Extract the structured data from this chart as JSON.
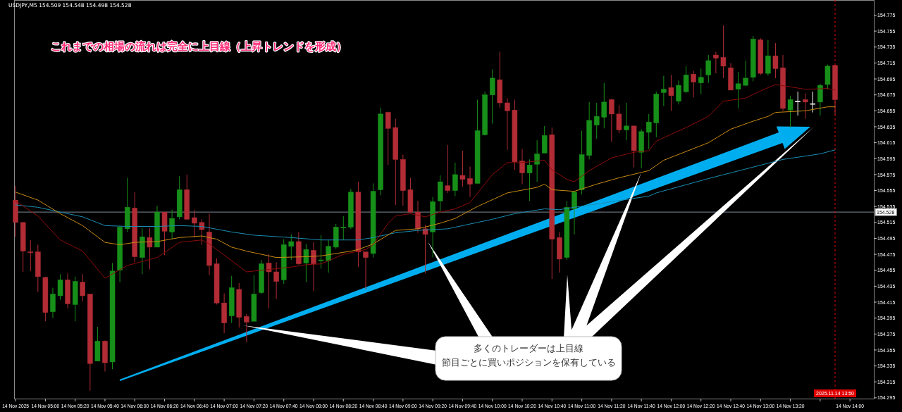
{
  "chart_data": {
    "type": "candlestick",
    "title": "USDJPY,M5  154.509 154.548 154.498 154.528",
    "annotations": [
      "これまでの相場の流れは完全に上目線（上昇トレンドを形成）",
      "多くのトレーダーは上目線",
      "節目ごとに買いポジションを保有している"
    ],
    "x": [
      "2025-11-14T04:40",
      "2025-11-14T04:45",
      "2025-11-14T04:50",
      "2025-11-14T04:55",
      "2025-11-14T05:00",
      "2025-11-14T05:05",
      "2025-11-14T05:10",
      "2025-11-14T05:15",
      "2025-11-14T05:20",
      "2025-11-14T05:25",
      "2025-11-14T05:30",
      "2025-11-14T05:35",
      "2025-11-14T05:40",
      "2025-11-14T05:45",
      "2025-11-14T05:50",
      "2025-11-14T05:55",
      "2025-11-14T06:00",
      "2025-11-14T06:05",
      "2025-11-14T06:10",
      "2025-11-14T06:15",
      "2025-11-14T06:20",
      "2025-11-14T06:25",
      "2025-11-14T06:30",
      "2025-11-14T06:35",
      "2025-11-14T06:40",
      "2025-11-14T06:45",
      "2025-11-14T06:50",
      "2025-11-14T06:55",
      "2025-11-14T07:00",
      "2025-11-14T07:05",
      "2025-11-14T07:10",
      "2025-11-14T07:15",
      "2025-11-14T07:20",
      "2025-11-14T07:25",
      "2025-11-14T07:30",
      "2025-11-14T07:35",
      "2025-11-14T07:40",
      "2025-11-14T07:45",
      "2025-11-14T07:50",
      "2025-11-14T07:55",
      "2025-11-14T08:00",
      "2025-11-14T08:05",
      "2025-11-14T08:10",
      "2025-11-14T08:15",
      "2025-11-14T08:20",
      "2025-11-14T08:25",
      "2025-11-14T08:30",
      "2025-11-14T08:35",
      "2025-11-14T08:40",
      "2025-11-14T08:45",
      "2025-11-14T08:50",
      "2025-11-14T08:55",
      "2025-11-14T09:00",
      "2025-11-14T09:05",
      "2025-11-14T09:10",
      "2025-11-14T09:15",
      "2025-11-14T09:20",
      "2025-11-14T09:25",
      "2025-11-14T09:30",
      "2025-11-14T09:35",
      "2025-11-14T09:40",
      "2025-11-14T09:45",
      "2025-11-14T09:50",
      "2025-11-14T09:55",
      "2025-11-14T10:00",
      "2025-11-14T10:05",
      "2025-11-14T10:10",
      "2025-11-14T10:15",
      "2025-11-14T10:20",
      "2025-11-14T10:25",
      "2025-11-14T10:30",
      "2025-11-14T10:35",
      "2025-11-14T10:40",
      "2025-11-14T10:45",
      "2025-11-14T10:50",
      "2025-11-14T10:55",
      "2025-11-14T11:00",
      "2025-11-14T11:05",
      "2025-11-14T11:10",
      "2025-11-14T11:15",
      "2025-11-14T11:20",
      "2025-11-14T11:25",
      "2025-11-14T11:30",
      "2025-11-14T11:35",
      "2025-11-14T11:40",
      "2025-11-14T11:45",
      "2025-11-14T11:50",
      "2025-11-14T11:55",
      "2025-11-14T12:00",
      "2025-11-14T12:05",
      "2025-11-14T12:10",
      "2025-11-14T12:15",
      "2025-11-14T12:20",
      "2025-11-14T12:25",
      "2025-11-14T12:30",
      "2025-11-14T12:35",
      "2025-11-14T12:40",
      "2025-11-14T12:45",
      "2025-11-14T12:50",
      "2025-11-14T12:55",
      "2025-11-14T13:00",
      "2025-11-14T13:05",
      "2025-11-14T13:10",
      "2025-11-14T13:15",
      "2025-11-14T13:20",
      "2025-11-14T13:25",
      "2025-11-14T13:30",
      "2025-11-14T13:35",
      "2025-11-14T13:40",
      "2025-11-14T13:45",
      "2025-11-14T13:50"
    ],
    "ohlc": [
      [
        154.543,
        154.561,
        154.497,
        154.515
      ],
      [
        154.515,
        154.515,
        154.453,
        154.479
      ],
      [
        154.478,
        154.493,
        154.454,
        154.477
      ],
      [
        154.478,
        154.487,
        154.428,
        154.447
      ],
      [
        154.446,
        154.447,
        154.391,
        154.402
      ],
      [
        154.403,
        154.433,
        154.395,
        154.425
      ],
      [
        154.423,
        154.45,
        154.418,
        154.443
      ],
      [
        154.443,
        154.451,
        154.407,
        154.413
      ],
      [
        154.412,
        154.447,
        154.391,
        154.441
      ],
      [
        154.44,
        154.45,
        154.416,
        154.423
      ],
      [
        154.425,
        154.425,
        154.304,
        154.338
      ],
      [
        154.341,
        154.384,
        154.341,
        154.366
      ],
      [
        154.366,
        154.367,
        154.328,
        154.339
      ],
      [
        154.34,
        154.464,
        154.331,
        154.454
      ],
      [
        154.455,
        154.511,
        154.44,
        154.509
      ],
      [
        154.507,
        154.571,
        154.503,
        154.534
      ],
      [
        154.533,
        154.553,
        154.465,
        154.472
      ],
      [
        154.471,
        154.508,
        154.45,
        154.497
      ],
      [
        154.496,
        154.508,
        154.456,
        154.484
      ],
      [
        154.484,
        154.536,
        154.484,
        154.528
      ],
      [
        154.528,
        154.528,
        154.474,
        154.504
      ],
      [
        154.503,
        154.531,
        154.494,
        154.52
      ],
      [
        154.522,
        154.573,
        154.519,
        154.556
      ],
      [
        154.556,
        154.575,
        154.519,
        154.519
      ],
      [
        154.521,
        154.531,
        154.496,
        154.514
      ],
      [
        154.515,
        154.519,
        154.487,
        154.506
      ],
      [
        154.503,
        154.526,
        154.449,
        154.461
      ],
      [
        154.463,
        154.47,
        154.412,
        154.414
      ],
      [
        154.414,
        154.426,
        154.376,
        154.389
      ],
      [
        154.398,
        154.448,
        154.389,
        154.433
      ],
      [
        154.431,
        154.439,
        154.383,
        154.396
      ],
      [
        154.397,
        154.4,
        154.365,
        154.39
      ],
      [
        154.391,
        154.449,
        154.391,
        154.425
      ],
      [
        154.427,
        154.468,
        154.425,
        154.463
      ],
      [
        154.464,
        154.475,
        154.407,
        154.453
      ],
      [
        154.453,
        154.465,
        154.419,
        154.441
      ],
      [
        154.443,
        154.494,
        154.438,
        154.487
      ],
      [
        154.485,
        154.5,
        154.468,
        154.491
      ],
      [
        154.491,
        154.503,
        154.462,
        154.463
      ],
      [
        154.464,
        154.488,
        154.44,
        154.481
      ],
      [
        154.48,
        154.49,
        154.429,
        154.463
      ],
      [
        154.467,
        154.499,
        154.457,
        154.468
      ],
      [
        154.467,
        154.493,
        154.452,
        154.485
      ],
      [
        154.484,
        154.513,
        154.482,
        154.509
      ],
      [
        154.508,
        154.523,
        154.493,
        154.509
      ],
      [
        154.509,
        154.557,
        154.507,
        154.553
      ],
      [
        154.553,
        154.566,
        154.459,
        154.478
      ],
      [
        154.478,
        154.478,
        154.431,
        154.471
      ],
      [
        154.476,
        154.564,
        154.471,
        154.554
      ],
      [
        154.556,
        154.659,
        154.549,
        154.651
      ],
      [
        154.653,
        154.654,
        154.587,
        154.633
      ],
      [
        154.634,
        154.645,
        154.537,
        154.594
      ],
      [
        154.594,
        154.6,
        154.536,
        154.555
      ],
      [
        154.556,
        154.571,
        154.527,
        154.528
      ],
      [
        154.528,
        154.542,
        154.502,
        154.507
      ],
      [
        154.507,
        154.512,
        154.451,
        154.5
      ],
      [
        154.503,
        154.547,
        154.471,
        154.541
      ],
      [
        154.542,
        154.574,
        154.529,
        154.566
      ],
      [
        154.561,
        154.612,
        154.552,
        154.555
      ],
      [
        154.555,
        154.59,
        154.548,
        154.575
      ],
      [
        154.574,
        154.605,
        154.56,
        154.569
      ],
      [
        154.57,
        154.585,
        154.547,
        154.563
      ],
      [
        154.564,
        154.669,
        154.564,
        154.63
      ],
      [
        154.625,
        154.679,
        154.624,
        154.675
      ],
      [
        154.675,
        154.707,
        154.639,
        154.696
      ],
      [
        154.694,
        154.729,
        154.659,
        154.665
      ],
      [
        154.665,
        154.671,
        154.606,
        154.655
      ],
      [
        154.656,
        154.669,
        154.581,
        154.591
      ],
      [
        154.592,
        154.607,
        154.563,
        154.577
      ],
      [
        154.577,
        154.594,
        154.542,
        154.587
      ],
      [
        154.588,
        154.618,
        154.566,
        154.601
      ],
      [
        154.602,
        154.636,
        154.602,
        154.624
      ],
      [
        154.625,
        154.634,
        154.444,
        154.494
      ],
      [
        154.496,
        154.503,
        154.452,
        154.469
      ],
      [
        154.471,
        154.542,
        154.468,
        154.534
      ],
      [
        154.532,
        154.554,
        154.5,
        154.553
      ],
      [
        154.556,
        154.63,
        154.55,
        154.6
      ],
      [
        154.599,
        154.666,
        154.594,
        154.643
      ],
      [
        154.637,
        154.665,
        154.62,
        154.648
      ],
      [
        154.647,
        154.69,
        154.633,
        154.666
      ],
      [
        154.669,
        154.67,
        154.616,
        154.651
      ],
      [
        154.651,
        154.662,
        154.627,
        154.631
      ],
      [
        154.631,
        154.665,
        154.618,
        154.636
      ],
      [
        154.636,
        154.636,
        154.584,
        154.605
      ],
      [
        154.603,
        154.632,
        154.583,
        154.629
      ],
      [
        154.628,
        154.651,
        154.607,
        154.641
      ],
      [
        154.64,
        154.679,
        154.622,
        154.676
      ],
      [
        154.678,
        154.699,
        154.661,
        154.682
      ],
      [
        154.684,
        154.7,
        154.655,
        154.674
      ],
      [
        154.667,
        154.693,
        154.663,
        154.687
      ],
      [
        154.679,
        154.711,
        154.677,
        154.7
      ],
      [
        154.701,
        154.705,
        154.672,
        154.691
      ],
      [
        154.69,
        154.708,
        154.676,
        154.697
      ],
      [
        154.7,
        154.725,
        154.69,
        154.718
      ],
      [
        154.725,
        154.729,
        154.702,
        154.721
      ],
      [
        154.722,
        154.762,
        154.696,
        154.711
      ],
      [
        154.709,
        154.715,
        154.681,
        154.681
      ],
      [
        154.682,
        154.704,
        154.658,
        154.689
      ],
      [
        154.687,
        154.718,
        154.686,
        154.696
      ],
      [
        154.697,
        154.749,
        154.692,
        154.745
      ],
      [
        154.744,
        154.746,
        154.7,
        154.702
      ],
      [
        154.702,
        154.744,
        154.699,
        154.724
      ],
      [
        154.724,
        154.74,
        154.696,
        154.708
      ],
      [
        154.709,
        154.725,
        154.655,
        154.658
      ],
      [
        154.656,
        154.674,
        154.634,
        154.669
      ],
      [
        154.667,
        154.679,
        154.649,
        154.667
      ],
      [
        154.669,
        154.677,
        154.645,
        154.666
      ],
      [
        154.664,
        154.679,
        154.653,
        154.664
      ],
      [
        154.666,
        154.689,
        154.649,
        154.687
      ],
      [
        154.688,
        154.713,
        154.682,
        154.711
      ],
      [
        154.712,
        154.712,
        154.65,
        154.669
      ]
    ],
    "colors": [
      "#b22c35",
      "#b22c35",
      "#b22c35",
      "#b22c35",
      "#b22c35",
      "#17901a",
      "#17901a",
      "#b22c35",
      "#17901a",
      "#b22c35",
      "#b22c35",
      "#17901a",
      "#b22c35",
      "#17901a",
      "#17901a",
      "#17901a",
      "#b22c35",
      "#17901a",
      "#b22c35",
      "#17901a",
      "#b22c35",
      "#17901a",
      "#17901a",
      "#b22c35",
      "#b22c35",
      "#b22c35",
      "#b22c35",
      "#b22c35",
      "#b22c35",
      "#17901a",
      "#b22c35",
      "#b22c35",
      "#17901a",
      "#17901a",
      "#b22c35",
      "#b22c35",
      "#17901a",
      "#17901a",
      "#b22c35",
      "#17901a",
      "#b22c35",
      "#17901a",
      "#17901a",
      "#17901a",
      "#17901a",
      "#17901a",
      "#b22c35",
      "#b22c35",
      "#17901a",
      "#17901a",
      "#b22c35",
      "#b22c35",
      "#b22c35",
      "#b22c35",
      "#b22c35",
      "#b22c35",
      "#17901a",
      "#17901a",
      "#b22c35",
      "#17901a",
      "#b22c35",
      "#b22c35",
      "#17901a",
      "#17901a",
      "#17901a",
      "#b22c35",
      "#b22c35",
      "#b22c35",
      "#b22c35",
      "#17901a",
      "#17901a",
      "#17901a",
      "#b22c35",
      "#b22c35",
      "#17901a",
      "#17901a",
      "#17901a",
      "#17901a",
      "#17901a",
      "#17901a",
      "#b22c35",
      "#b22c35",
      "#17901a",
      "#b22c35",
      "#17901a",
      "#17901a",
      "#17901a",
      "#17901a",
      "#b22c35",
      "#17901a",
      "#17901a",
      "#b22c35",
      "#17901a",
      "#17901a",
      "#b22c35",
      "#b22c35",
      "#b22c35",
      "#17901a",
      "#17901a",
      "#17901a",
      "#b22c35",
      "#17901a",
      "#b22c35",
      "#b22c35",
      "#17901a",
      "#ffffff",
      "#b22c35",
      "#ffffff",
      "#17901a",
      "#17901a",
      "#b22c35"
    ],
    "series": [
      {
        "type": "line",
        "color": "#1b8db3",
        "x": [
          "2025-11-14T04:40",
          "2025-11-14T04:55",
          "2025-11-14T05:10",
          "2025-11-14T05:25",
          "2025-11-14T05:40",
          "2025-11-14T05:55",
          "2025-11-14T06:15",
          "2025-11-14T06:30",
          "2025-11-14T06:45",
          "2025-11-14T07:05",
          "2025-11-14T07:20",
          "2025-11-14T07:45",
          "2025-11-14T08:05",
          "2025-11-14T08:30",
          "2025-11-14T08:40",
          "2025-11-14T08:55",
          "2025-11-14T09:10",
          "2025-11-14T09:30",
          "2025-11-14T09:45",
          "2025-11-14T10:00",
          "2025-11-14T10:15",
          "2025-11-14T10:35",
          "2025-11-14T10:45",
          "2025-11-14T10:55",
          "2025-11-14T11:20",
          "2025-11-14T11:45",
          "2025-11-14T11:50",
          "2025-11-14T12:25",
          "2025-11-14T12:50",
          "2025-11-14T13:15",
          "2025-11-14T13:40",
          "2025-11-14T13:50"
        ],
        "values": [
          154.537,
          154.534,
          154.528,
          154.522,
          154.511,
          154.51,
          154.51,
          154.511,
          154.51,
          154.503,
          154.499,
          154.496,
          154.493,
          154.493,
          154.496,
          154.502,
          154.505,
          154.507,
          154.513,
          154.519,
          154.526,
          154.532,
          154.531,
          154.534,
          154.541,
          154.548,
          154.552,
          154.57,
          154.582,
          154.594,
          154.601,
          154.606
        ]
      },
      {
        "type": "line",
        "color": "#c88a12",
        "x": [
          "2025-11-14T04:40",
          "2025-11-14T04:55",
          "2025-11-14T05:10",
          "2025-11-14T05:25",
          "2025-11-14T05:40",
          "2025-11-14T05:50",
          "2025-11-14T06:00",
          "2025-11-14T06:15",
          "2025-11-14T06:30",
          "2025-11-14T06:45",
          "2025-11-14T06:55",
          "2025-11-14T07:05",
          "2025-11-14T07:15",
          "2025-11-14T07:35",
          "2025-11-14T07:55",
          "2025-11-14T08:05",
          "2025-11-14T08:25",
          "2025-11-14T08:30",
          "2025-11-14T08:40",
          "2025-11-14T08:55",
          "2025-11-14T09:10",
          "2025-11-14T09:25",
          "2025-11-14T09:35",
          "2025-11-14T09:50",
          "2025-11-14T10:10",
          "2025-11-14T10:30",
          "2025-11-14T10:35",
          "2025-11-14T10:40",
          "2025-11-14T10:55",
          "2025-11-14T11:10",
          "2025-11-14T11:25",
          "2025-11-14T11:45",
          "2025-11-14T11:55",
          "2025-11-14T12:10",
          "2025-11-14T12:25",
          "2025-11-14T12:40",
          "2025-11-14T12:55",
          "2025-11-14T13:05",
          "2025-11-14T13:10",
          "2025-11-14T13:30",
          "2025-11-14T13:45",
          "2025-11-14T13:50"
        ],
        "values": [
          154.553,
          154.543,
          154.526,
          154.511,
          154.49,
          154.487,
          154.49,
          154.491,
          154.496,
          154.498,
          154.494,
          154.484,
          154.479,
          154.471,
          154.472,
          154.473,
          154.479,
          154.481,
          154.488,
          154.505,
          154.507,
          154.514,
          154.52,
          154.535,
          154.552,
          154.559,
          154.563,
          154.556,
          154.554,
          154.563,
          154.571,
          154.58,
          154.593,
          154.604,
          154.615,
          154.632,
          154.642,
          154.648,
          154.653,
          154.655,
          154.66,
          154.66
        ]
      },
      {
        "type": "line",
        "color": "#8e0c0c",
        "x": [
          "2025-11-14T04:40",
          "2025-11-14T04:55",
          "2025-11-14T05:10",
          "2025-11-14T05:25",
          "2025-11-14T05:40",
          "2025-11-14T05:55",
          "2025-11-14T06:15",
          "2025-11-14T06:30",
          "2025-11-14T06:45",
          "2025-11-14T06:50",
          "2025-11-14T07:15",
          "2025-11-14T07:25",
          "2025-11-14T07:45",
          "2025-11-14T07:55",
          "2025-11-14T08:05",
          "2025-11-14T08:20",
          "2025-11-14T08:35",
          "2025-11-14T08:40",
          "2025-11-14T08:50",
          "2025-11-14T08:55",
          "2025-11-14T09:05",
          "2025-11-14T09:15",
          "2025-11-14T09:25",
          "2025-11-14T09:35",
          "2025-11-14T09:45",
          "2025-11-14T10:00",
          "2025-11-14T10:10",
          "2025-11-14T10:20",
          "2025-11-14T10:35",
          "2025-11-14T10:40",
          "2025-11-14T10:50",
          "2025-11-14T10:55",
          "2025-11-14T11:05",
          "2025-11-14T11:20",
          "2025-11-14T11:35",
          "2025-11-14T11:45",
          "2025-11-14T11:50",
          "2025-11-14T12:10",
          "2025-11-14T12:25",
          "2025-11-14T12:35",
          "2025-11-14T12:50",
          "2025-11-14T13:00",
          "2025-11-14T13:10",
          "2025-11-14T13:30",
          "2025-11-14T13:45",
          "2025-11-14T13:50"
        ],
        "values": [
          154.542,
          154.523,
          154.493,
          154.479,
          154.445,
          154.461,
          154.471,
          154.49,
          154.493,
          154.488,
          154.453,
          154.455,
          154.459,
          154.462,
          154.463,
          154.475,
          154.481,
          154.487,
          154.514,
          154.523,
          154.526,
          154.522,
          154.528,
          154.532,
          154.54,
          154.575,
          154.59,
          154.59,
          154.593,
          154.581,
          154.569,
          154.566,
          154.58,
          154.596,
          154.603,
          154.605,
          154.617,
          154.634,
          154.648,
          154.667,
          154.671,
          154.68,
          154.688,
          154.682,
          154.683,
          154.681
        ]
      }
    ],
    "xlim": [
      "2025-11-14T04:39",
      "2025-11-14T14:16"
    ],
    "ylim": [
      154.294,
      154.794
    ],
    "xticks": [
      {
        "value": "2025-11-14T04:40",
        "label": "14 Nov 2025"
      },
      {
        "value": "2025-11-14T05:00",
        "label": "14 Nov 05:00"
      },
      {
        "value": "2025-11-14T05:20",
        "label": "14 Nov 05:20"
      },
      {
        "value": "2025-11-14T05:40",
        "label": "14 Nov 05:40"
      },
      {
        "value": "2025-11-14T06:00",
        "label": "14 Nov 06:00"
      },
      {
        "value": "2025-11-14T06:20",
        "label": "14 Nov 06:20"
      },
      {
        "value": "2025-11-14T06:40",
        "label": "14 Nov 06:40"
      },
      {
        "value": "2025-11-14T07:00",
        "label": "14 Nov 07:00"
      },
      {
        "value": "2025-11-14T07:20",
        "label": "14 Nov 07:20"
      },
      {
        "value": "2025-11-14T07:40",
        "label": "14 Nov 07:40"
      },
      {
        "value": "2025-11-14T08:00",
        "label": "14 Nov 08:00"
      },
      {
        "value": "2025-11-14T08:20",
        "label": "14 Nov 08:20"
      },
      {
        "value": "2025-11-14T08:40",
        "label": "14 Nov 08:40"
      },
      {
        "value": "2025-11-14T09:00",
        "label": "14 Nov 09:00"
      },
      {
        "value": "2025-11-14T09:20",
        "label": "14 Nov 09:20"
      },
      {
        "value": "2025-11-14T09:40",
        "label": "14 Nov 09:40"
      },
      {
        "value": "2025-11-14T10:00",
        "label": "14 Nov 10:00"
      },
      {
        "value": "2025-11-14T10:20",
        "label": "14 Nov 10:20"
      },
      {
        "value": "2025-11-14T10:40",
        "label": "14 Nov 10:40"
      },
      {
        "value": "2025-11-14T11:00",
        "label": "14 Nov 11:00"
      },
      {
        "value": "2025-11-14T11:20",
        "label": "14 Nov 11:20"
      },
      {
        "value": "2025-11-14T11:40",
        "label": "14 Nov 11:40"
      },
      {
        "value": "2025-11-14T12:00",
        "label": "14 Nov 12:00"
      },
      {
        "value": "2025-11-14T12:20",
        "label": "14 Nov 12:20"
      },
      {
        "value": "2025-11-14T12:40",
        "label": "14 Nov 12:40"
      },
      {
        "value": "2025-11-14T13:00",
        "label": "14 Nov 13:00"
      },
      {
        "value": "2025-11-14T13:20",
        "label": "14 Nov 13:20"
      },
      {
        "value": "2025-11-14T13:40",
        "label": null
      },
      {
        "value": "2025-11-14T14:00",
        "label": "14 Nov 14:00"
      }
    ],
    "yticks": [
      154.295,
      154.315,
      154.335,
      154.355,
      154.375,
      154.395,
      154.415,
      154.435,
      154.455,
      154.475,
      154.495,
      154.515,
      154.535,
      154.555,
      154.575,
      154.595,
      154.615,
      154.635,
      154.655,
      154.675,
      154.695,
      154.715,
      154.735,
      154.755,
      154.775
    ],
    "ref_lines": [
      {
        "axis": "y",
        "value": 154.528,
        "label": "154.528",
        "color": "#7f8c96"
      },
      {
        "axis": "x",
        "value": "2025-11-14T13:50",
        "label": "2025.11.14 13:50",
        "color": "#e00000",
        "line_style": "dashed"
      }
    ]
  }
}
